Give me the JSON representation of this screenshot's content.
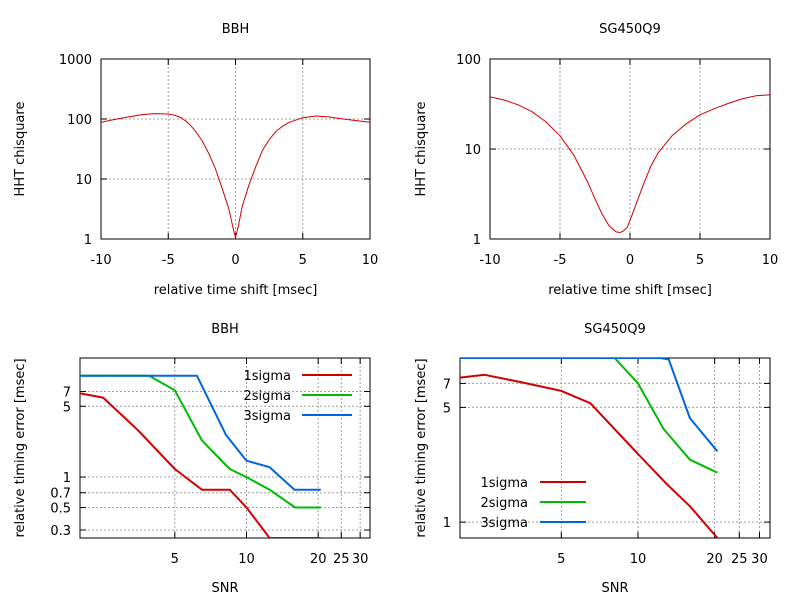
{
  "chart_data": [
    {
      "id": "bbh-chisq",
      "type": "line",
      "title": "BBH",
      "xlabel": "relative time shift [msec]",
      "ylabel": "HHT chisquare",
      "xscale": "linear",
      "yscale": "log",
      "xlim": [
        -10,
        10
      ],
      "ylim": [
        1,
        1000
      ],
      "xticks": [
        -10,
        -5,
        0,
        5,
        10
      ],
      "xtick_labels": [
        "-10",
        "-5",
        "0",
        "5",
        "10"
      ],
      "yticks": [
        1,
        10,
        100,
        1000
      ],
      "ytick_labels": [
        "1",
        "10",
        "100",
        "1000"
      ],
      "grid": true,
      "legend": "none",
      "series": [
        {
          "name": "chisquare",
          "color": "#d00000",
          "x": [
            -10,
            -9,
            -8,
            -7,
            -6,
            -5,
            -4.5,
            -4,
            -3.5,
            -3,
            -2.5,
            -2,
            -1.5,
            -1,
            -0.5,
            -0.2,
            0,
            0.2,
            0.5,
            1,
            1.5,
            2,
            2.5,
            3,
            3.5,
            4,
            5,
            6,
            7,
            8,
            9,
            10
          ],
          "y": [
            88,
            98,
            108,
            118,
            123,
            121,
            115,
            104,
            85,
            64,
            44,
            27,
            15,
            7,
            3.2,
            1.6,
            1.05,
            1.6,
            3.5,
            8,
            16,
            30,
            45,
            62,
            76,
            88,
            105,
            112,
            108,
            100,
            94,
            88
          ]
        }
      ]
    },
    {
      "id": "sg-chisq",
      "type": "line",
      "title": "SG450Q9",
      "xlabel": "relative time shift [msec]",
      "ylabel": "HHT chisquare",
      "xscale": "linear",
      "yscale": "log",
      "xlim": [
        -10,
        10
      ],
      "ylim": [
        1,
        100
      ],
      "xticks": [
        -10,
        -5,
        0,
        5,
        10
      ],
      "xtick_labels": [
        "-10",
        "-5",
        "0",
        "5",
        "10"
      ],
      "yticks": [
        1,
        10,
        100
      ],
      "ytick_labels": [
        "1",
        "10",
        "100"
      ],
      "grid": true,
      "legend": "none",
      "series": [
        {
          "name": "chisquare",
          "color": "#d00000",
          "x": [
            -10,
            -9,
            -8,
            -7,
            -6,
            -5,
            -4,
            -3,
            -2.5,
            -2,
            -1.5,
            -1,
            -0.7,
            -0.5,
            -0.2,
            0,
            0.5,
            1,
            1.5,
            2,
            3,
            4,
            5,
            6,
            7,
            8,
            9,
            10
          ],
          "y": [
            38,
            35,
            31,
            26,
            20,
            14,
            8.5,
            4.2,
            2.8,
            1.9,
            1.4,
            1.2,
            1.18,
            1.22,
            1.35,
            1.6,
            2.6,
            4.2,
            6.5,
            9,
            14,
            19,
            24,
            28,
            32,
            36,
            39,
            40
          ]
        }
      ]
    },
    {
      "id": "bbh-timing",
      "type": "line",
      "title": "BBH",
      "xlabel": "SNR",
      "ylabel": "relative timing error [msec]",
      "xscale": "log",
      "yscale": "log",
      "xlim": [
        2,
        33
      ],
      "ylim": [
        0.25,
        15
      ],
      "xticks": [
        5,
        10,
        20,
        25,
        30
      ],
      "xtick_labels": [
        "5",
        "10",
        "20",
        "25",
        "30"
      ],
      "yticks": [
        0.3,
        0.5,
        0.7,
        1,
        5,
        7
      ],
      "ytick_labels": [
        "0.3",
        "0.5",
        "0.7",
        "1",
        "5",
        "7"
      ],
      "grid": true,
      "legend": "top-right",
      "series": [
        {
          "name": "1sigma",
          "color": "#d00000",
          "x": [
            2,
            2.5,
            3.5,
            5,
            6.5,
            8.5,
            10,
            12.5,
            16,
            20.5
          ],
          "y": [
            6.7,
            6.1,
            2.9,
            1.2,
            0.75,
            0.75,
            0.5,
            0.25,
            0.25,
            0.25
          ]
        },
        {
          "name": "2sigma",
          "color": "#00bb00",
          "x": [
            2,
            3.9,
            5,
            6.5,
            8.5,
            10,
            12.5,
            16,
            20.5
          ],
          "y": [
            10,
            10,
            7.2,
            2.3,
            1.2,
            1.0,
            0.75,
            0.5,
            0.5
          ]
        },
        {
          "name": "3sigma",
          "color": "#0066dd",
          "x": [
            2,
            6.2,
            8.2,
            10,
            12.5,
            15.9,
            20.5
          ],
          "y": [
            10,
            10,
            2.6,
            1.45,
            1.25,
            0.75,
            0.75
          ]
        }
      ]
    },
    {
      "id": "sg-timing",
      "type": "line",
      "title": "SG450Q9",
      "xlabel": "SNR",
      "ylabel": "relative timing error [msec]",
      "xscale": "log",
      "yscale": "log",
      "xlim": [
        2,
        33
      ],
      "ylim": [
        0.8,
        10
      ],
      "xticks": [
        5,
        10,
        20,
        25,
        30
      ],
      "xtick_labels": [
        "5",
        "10",
        "20",
        "25",
        "30"
      ],
      "yticks": [
        1,
        5,
        7
      ],
      "ytick_labels": [
        "1",
        "5",
        "7"
      ],
      "grid": true,
      "legend": "bottom-left",
      "series": [
        {
          "name": "1sigma",
          "color": "#d00000",
          "x": [
            2,
            2.5,
            3.5,
            5,
            6.5,
            10,
            13,
            16,
            20.5
          ],
          "y": [
            7.6,
            7.9,
            7.1,
            6.3,
            5.3,
            2.6,
            1.7,
            1.25,
            0.8
          ]
        },
        {
          "name": "2sigma",
          "color": "#00bb00",
          "x": [
            2,
            8.1,
            10,
            12.6,
            16,
            20.5
          ],
          "y": [
            10,
            10,
            7.0,
            3.7,
            2.4,
            2.0
          ]
        },
        {
          "name": "3sigma",
          "color": "#0066dd",
          "x": [
            2,
            12.2,
            13.2,
            16,
            20.5
          ],
          "y": [
            10,
            10,
            9.8,
            4.3,
            2.7
          ]
        }
      ]
    }
  ]
}
